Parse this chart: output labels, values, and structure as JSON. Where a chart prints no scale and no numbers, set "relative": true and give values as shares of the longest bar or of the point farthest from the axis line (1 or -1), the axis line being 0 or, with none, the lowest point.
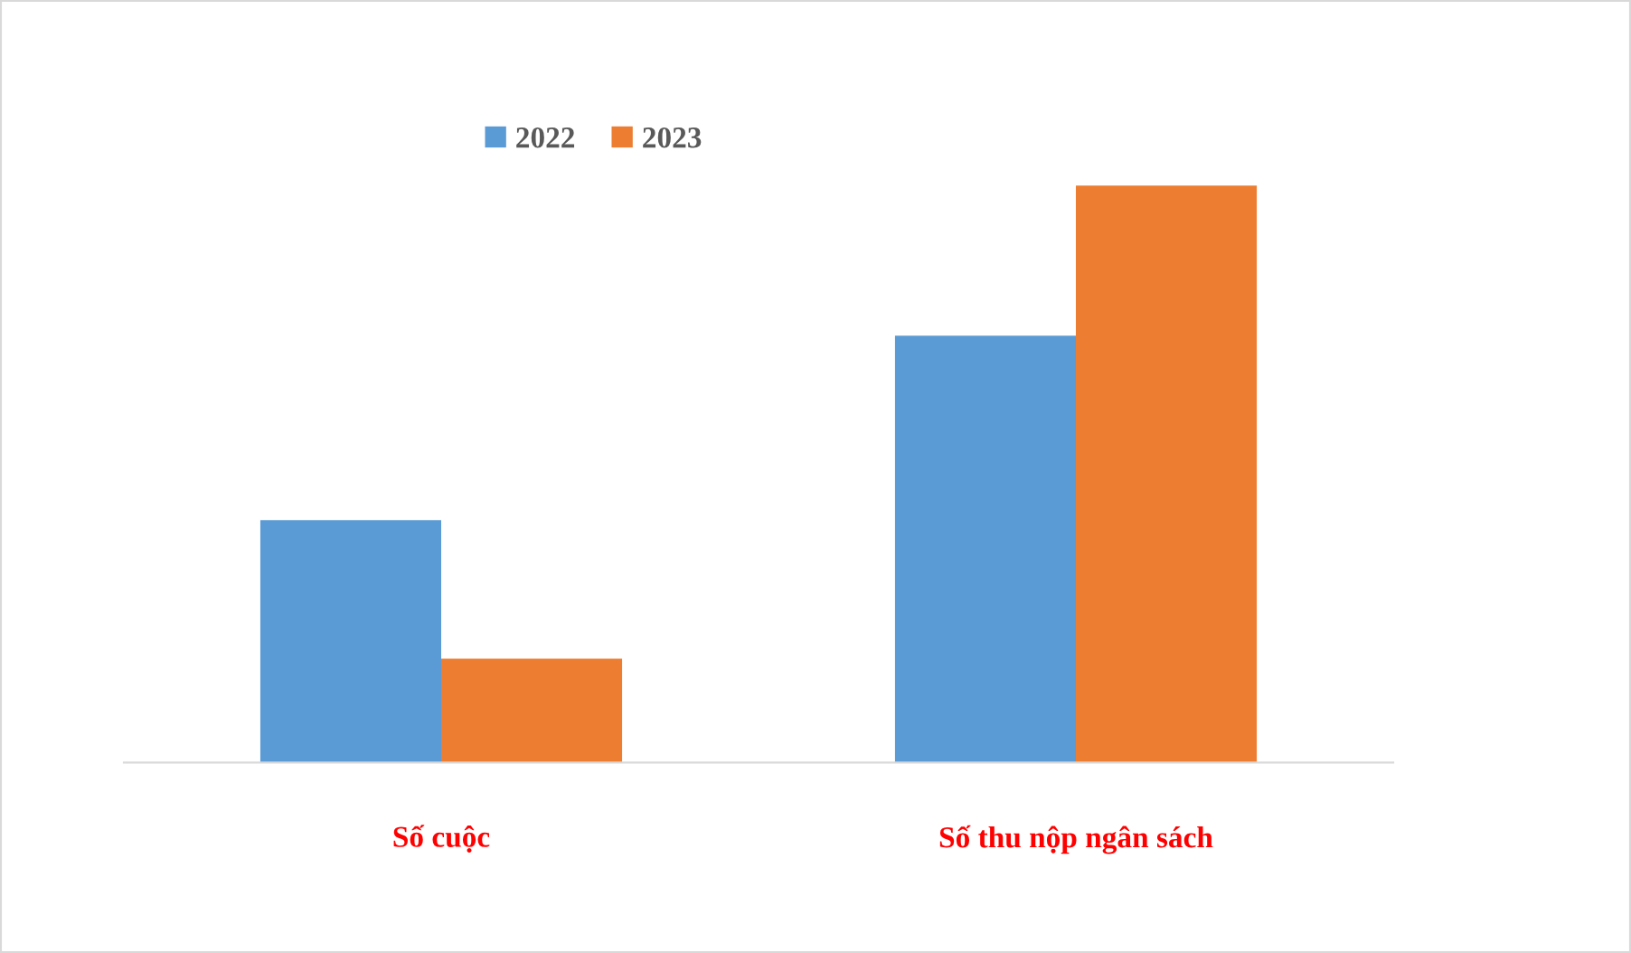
{
  "chart_data": {
    "type": "bar",
    "relative": true,
    "categories": [
      "Số cuộc",
      "Số thu nộp ngân sách"
    ],
    "series": [
      {
        "name": "2022",
        "color": "#5b9bd5",
        "values": [
          0.42,
          0.74
        ]
      },
      {
        "name": "2023",
        "color": "#ed7d31",
        "values": [
          0.18,
          1
        ]
      }
    ],
    "legend": "top",
    "grid": false
  }
}
